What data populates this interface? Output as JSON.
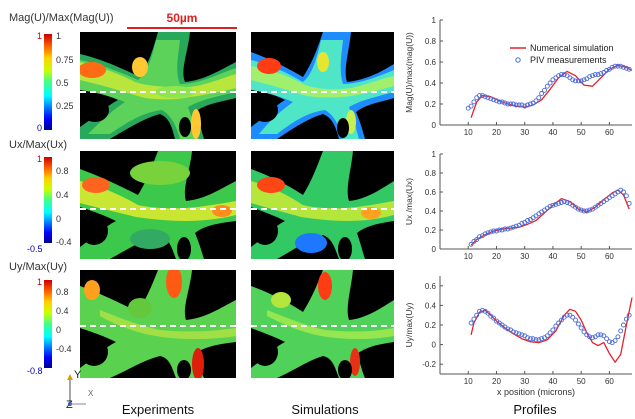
{
  "scale_bar": {
    "label": "50µm"
  },
  "column_labels": [
    "Experiments",
    "Simulations",
    "Profiles"
  ],
  "colorbars": [
    {
      "title": "Mag(U)/Max(Mag(U))",
      "max_label": "1",
      "min_label": "0",
      "ticks": [
        "1",
        "0.75",
        "0.5",
        "0.25"
      ]
    },
    {
      "title": "Ux/Max(Ux)",
      "max_label": "1",
      "min_label": "-0.5",
      "ticks": [
        "0.8",
        "0.4",
        "0",
        "-0.4"
      ]
    },
    {
      "title": "Uy/Max(Uy)",
      "max_label": "1",
      "min_label": "-0.8",
      "ticks": [
        "0.8",
        "0.4",
        "0",
        "-0.4"
      ]
    }
  ],
  "axes_triad": {
    "y": "Y",
    "z": "Z",
    "x": "X"
  },
  "colors": {
    "simulation": "#e8202a",
    "piv": "#4a6ad8",
    "scale_bar": "#e02020"
  },
  "chart_data": [
    {
      "type": "line",
      "ylabel": "Mag(U)/max(mag(U))",
      "xlabel": "",
      "xlim": [
        0,
        68
      ],
      "ylim": [
        0,
        1
      ],
      "xticks": [
        "10",
        "20",
        "30",
        "40",
        "50",
        "60"
      ],
      "yticks": [
        "0",
        "0.2",
        "0.4",
        "0.6",
        "0.8",
        "1"
      ],
      "legend": {
        "position": "top-right",
        "entries": [
          "Numerical simulation",
          "PIV measurements"
        ]
      },
      "series": [
        {
          "name": "Numerical simulation",
          "style": "line",
          "x": [
            11,
            13,
            15,
            18,
            21,
            24,
            27,
            30,
            33,
            36,
            39,
            42,
            45,
            48,
            51,
            54,
            57,
            60,
            63,
            66,
            68
          ],
          "y": [
            0.07,
            0.22,
            0.28,
            0.27,
            0.23,
            0.2,
            0.18,
            0.17,
            0.19,
            0.24,
            0.34,
            0.45,
            0.51,
            0.47,
            0.38,
            0.37,
            0.45,
            0.53,
            0.57,
            0.55,
            0.52
          ]
        },
        {
          "name": "PIV measurements",
          "style": "markers",
          "x": [
            10,
            11,
            12,
            13,
            14,
            15,
            16,
            17,
            18,
            19,
            20,
            21,
            22,
            23,
            24,
            25,
            26,
            27,
            28,
            29,
            30,
            31,
            32,
            33,
            34,
            35,
            36,
            37,
            38,
            39,
            40,
            41,
            42,
            43,
            44,
            45,
            46,
            47,
            48,
            49,
            50,
            51,
            52,
            53,
            54,
            55,
            56,
            57,
            58,
            59,
            60,
            61,
            62,
            63,
            64,
            65,
            66,
            67
          ],
          "y": [
            0.16,
            0.18,
            0.22,
            0.26,
            0.28,
            0.28,
            0.27,
            0.26,
            0.25,
            0.24,
            0.23,
            0.22,
            0.22,
            0.21,
            0.2,
            0.2,
            0.2,
            0.19,
            0.19,
            0.19,
            0.18,
            0.19,
            0.2,
            0.21,
            0.23,
            0.26,
            0.3,
            0.33,
            0.37,
            0.4,
            0.43,
            0.45,
            0.47,
            0.48,
            0.48,
            0.47,
            0.45,
            0.43,
            0.42,
            0.42,
            0.42,
            0.43,
            0.44,
            0.46,
            0.47,
            0.48,
            0.48,
            0.49,
            0.5,
            0.52,
            0.53,
            0.55,
            0.56,
            0.56,
            0.56,
            0.55,
            0.54,
            0.53
          ]
        }
      ]
    },
    {
      "type": "line",
      "ylabel": "Ux /max(Ux)",
      "xlabel": "",
      "xlim": [
        0,
        68
      ],
      "ylim": [
        0,
        1
      ],
      "xticks": [
        "10",
        "20",
        "30",
        "40",
        "50",
        "60"
      ],
      "yticks": [
        "0",
        "0.2",
        "0.4",
        "0.6",
        "0.8",
        "1"
      ],
      "series": [
        {
          "name": "Numerical simulation",
          "style": "line",
          "x": [
            11,
            13,
            16,
            19,
            22,
            25,
            28,
            31,
            34,
            37,
            40,
            43,
            46,
            49,
            52,
            55,
            58,
            61,
            63,
            65,
            67
          ],
          "y": [
            0.04,
            0.1,
            0.15,
            0.19,
            0.21,
            0.22,
            0.23,
            0.26,
            0.3,
            0.38,
            0.46,
            0.53,
            0.5,
            0.42,
            0.39,
            0.44,
            0.52,
            0.59,
            0.62,
            0.57,
            0.42
          ]
        },
        {
          "name": "PIV measurements",
          "style": "markers",
          "x": [
            11,
            12,
            13,
            14,
            15,
            16,
            17,
            18,
            19,
            20,
            21,
            22,
            23,
            24,
            25,
            26,
            27,
            28,
            29,
            30,
            31,
            32,
            33,
            34,
            35,
            36,
            37,
            38,
            39,
            40,
            41,
            42,
            43,
            44,
            45,
            46,
            47,
            48,
            49,
            50,
            51,
            52,
            53,
            54,
            55,
            56,
            57,
            58,
            59,
            60,
            61,
            62,
            63,
            64,
            65,
            66,
            67
          ],
          "y": [
            0.05,
            0.08,
            0.1,
            0.13,
            0.14,
            0.16,
            0.17,
            0.18,
            0.19,
            0.19,
            0.2,
            0.2,
            0.21,
            0.21,
            0.22,
            0.23,
            0.24,
            0.25,
            0.27,
            0.28,
            0.3,
            0.31,
            0.33,
            0.35,
            0.37,
            0.39,
            0.41,
            0.43,
            0.45,
            0.46,
            0.47,
            0.48,
            0.49,
            0.5,
            0.49,
            0.48,
            0.46,
            0.44,
            0.42,
            0.41,
            0.4,
            0.4,
            0.41,
            0.42,
            0.44,
            0.46,
            0.48,
            0.5,
            0.52,
            0.54,
            0.56,
            0.58,
            0.6,
            0.62,
            0.6,
            0.56,
            0.48
          ]
        }
      ]
    },
    {
      "type": "line",
      "ylabel": "Uy/max(Uy)",
      "xlabel": "x position  (microns)",
      "xlim": [
        0,
        68
      ],
      "ylim": [
        -0.3,
        0.7
      ],
      "xticks": [
        "10",
        "20",
        "30",
        "40",
        "50",
        "60"
      ],
      "yticks": [
        "-0.2",
        "0",
        "0.2",
        "0.4",
        "0.6"
      ],
      "series": [
        {
          "name": "Numerical simulation",
          "style": "line",
          "x": [
            11,
            12,
            14,
            16,
            18,
            20,
            23,
            26,
            29,
            32,
            35,
            38,
            41,
            44,
            46,
            48,
            50,
            52,
            54,
            56,
            58,
            60,
            62,
            64,
            66,
            68
          ],
          "y": [
            0.1,
            0.22,
            0.33,
            0.35,
            0.3,
            0.24,
            0.17,
            0.11,
            0.06,
            0.03,
            0.02,
            0.05,
            0.14,
            0.3,
            0.36,
            0.34,
            0.25,
            0.12,
            0.02,
            -0.01,
            0.02,
            -0.09,
            -0.18,
            -0.1,
            0.2,
            0.48
          ]
        },
        {
          "name": "PIV measurements",
          "style": "markers",
          "x": [
            11,
            12,
            13,
            14,
            15,
            16,
            17,
            18,
            19,
            20,
            21,
            22,
            23,
            24,
            25,
            26,
            27,
            28,
            29,
            30,
            31,
            32,
            33,
            34,
            35,
            36,
            37,
            38,
            39,
            40,
            41,
            42,
            43,
            44,
            45,
            46,
            47,
            48,
            49,
            50,
            51,
            52,
            53,
            54,
            55,
            56,
            57,
            58,
            59,
            60,
            61,
            62,
            63,
            64,
            65,
            66,
            67
          ],
          "y": [
            0.22,
            0.26,
            0.3,
            0.34,
            0.35,
            0.34,
            0.32,
            0.29,
            0.27,
            0.24,
            0.22,
            0.2,
            0.18,
            0.16,
            0.15,
            0.13,
            0.12,
            0.11,
            0.1,
            0.09,
            0.07,
            0.06,
            0.06,
            0.05,
            0.05,
            0.06,
            0.07,
            0.09,
            0.12,
            0.15,
            0.19,
            0.22,
            0.25,
            0.28,
            0.3,
            0.3,
            0.28,
            0.25,
            0.21,
            0.17,
            0.13,
            0.1,
            0.08,
            0.07,
            0.08,
            0.1,
            0.1,
            0.09,
            0.06,
            0.03,
            0.02,
            0.04,
            0.08,
            0.14,
            0.2,
            0.26,
            0.3
          ]
        }
      ]
    }
  ]
}
